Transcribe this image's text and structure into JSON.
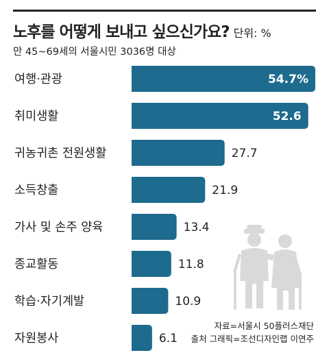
{
  "header": {
    "title": "노후를 어떻게 보내고 싶으신가요?",
    "unit": "단위: %",
    "subtitle": "만 45~69세의 서울시민 3036명 대상"
  },
  "chart_data": {
    "type": "bar",
    "orientation": "horizontal",
    "title": "노후를 어떻게 보내고 싶으신가요?",
    "categories": [
      "여행·관광",
      "취미생활",
      "귀농귀촌 전원생활",
      "소득창출",
      "가사 및 손주 양육",
      "종교활동",
      "학습·자기계발",
      "자원봉사"
    ],
    "values": [
      54.7,
      52.6,
      27.7,
      21.9,
      13.4,
      11.8,
      10.9,
      6.1
    ],
    "value_labels": [
      "54.7%",
      "52.6",
      "27.7",
      "21.9",
      "13.4",
      "11.8",
      "10.9",
      "6.1"
    ],
    "xlim": [
      0,
      60
    ],
    "grid": false,
    "bar_color": "#1d6b8e"
  },
  "footer": {
    "source": "자료=서울시 50플러스재단",
    "credit": "출처 그래픽=조선디자인랩 이연주"
  },
  "decor": {
    "icon": "elderly-couple-icon",
    "icon_color": "#d9d9d9"
  }
}
